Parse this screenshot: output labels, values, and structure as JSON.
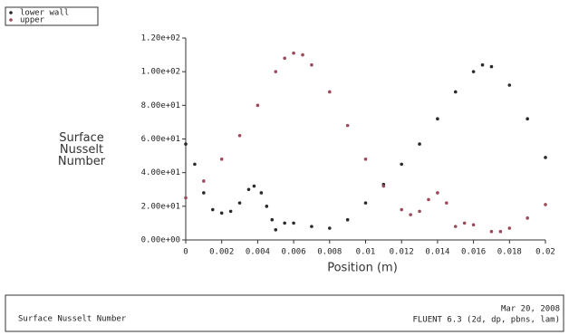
{
  "chart_data": {
    "type": "scatter",
    "ylabel": "Surface Nusselt Number",
    "xlabel": "Position (m)",
    "footer_title": "Surface Nusselt Number",
    "footer_date": "Mar 20, 2008",
    "footer_solver": "FLUENT 6.3 (2d, dp, pbns, lam)",
    "legend": "top-left",
    "xlim": [
      0,
      0.02
    ],
    "xticks": [
      0,
      0.002,
      0.004,
      0.006,
      0.008,
      0.01,
      0.012,
      0.014,
      0.016,
      0.018,
      0.02
    ],
    "ylim": [
      0,
      120
    ],
    "yticks": [
      {
        "value": 0,
        "label": "0.00e+00"
      },
      {
        "value": 20,
        "label": "2.00e+01"
      },
      {
        "value": 40,
        "label": "4.00e+01"
      },
      {
        "value": 60,
        "label": "6.00e+01"
      },
      {
        "value": 80,
        "label": "8.00e+01"
      },
      {
        "value": 100,
        "label": "1.00e+02"
      },
      {
        "value": 120,
        "label": "1.20e+02"
      }
    ],
    "series": [
      {
        "name": "lower wall",
        "color": "#2a2a2a",
        "x": [
          0,
          0.0005,
          0.001,
          0.0015,
          0.002,
          0.0025,
          0.003,
          0.0035,
          0.0038,
          0.0042,
          0.0045,
          0.0048,
          0.005,
          0.0055,
          0.006,
          0.007,
          0.008,
          0.009,
          0.01,
          0.011,
          0.012,
          0.013,
          0.014,
          0.015,
          0.016,
          0.0165,
          0.017,
          0.018,
          0.019,
          0.02
        ],
        "values": [
          57,
          45,
          28,
          18,
          16,
          17,
          22,
          30,
          32,
          28,
          20,
          12,
          6,
          10,
          10,
          8,
          7,
          12,
          22,
          33,
          45,
          57,
          72,
          88,
          100,
          104,
          103,
          92,
          72,
          49
        ]
      },
      {
        "name": "upper",
        "color": "#9a4a5a",
        "x": [
          0,
          0.001,
          0.002,
          0.003,
          0.004,
          0.005,
          0.0055,
          0.006,
          0.0065,
          0.007,
          0.008,
          0.009,
          0.01,
          0.011,
          0.012,
          0.0125,
          0.013,
          0.0135,
          0.014,
          0.0145,
          0.015,
          0.0155,
          0.016,
          0.017,
          0.0175,
          0.018,
          0.019,
          0.02
        ],
        "values": [
          25,
          35,
          48,
          62,
          80,
          100,
          108,
          111,
          110,
          104,
          88,
          68,
          48,
          32,
          18,
          15,
          17,
          24,
          28,
          22,
          8,
          10,
          9,
          5,
          5,
          7,
          13,
          21
        ]
      }
    ]
  }
}
